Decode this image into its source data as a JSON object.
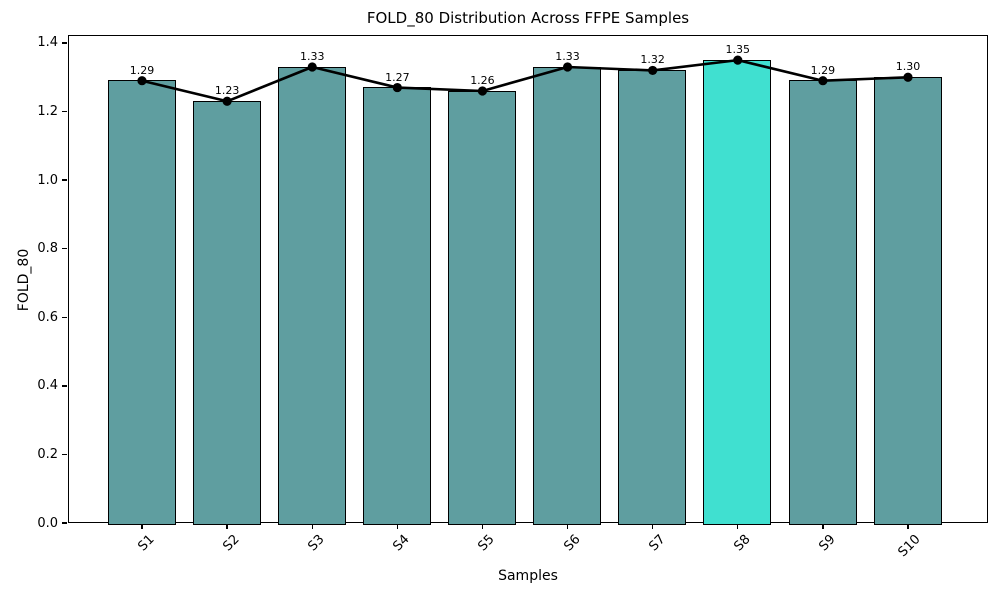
{
  "figure": {
    "title": "FOLD_80 Distribution Across FFPE Samples",
    "xlabel": "Samples",
    "ylabel": "FOLD_80"
  },
  "chart_data": {
    "type": "bar",
    "title": "FOLD_80 Distribution Across FFPE Samples",
    "xlabel": "Samples",
    "ylabel": "FOLD_80",
    "categories": [
      "S1",
      "S2",
      "S3",
      "S4",
      "S5",
      "S6",
      "S7",
      "S8",
      "S9",
      "S10"
    ],
    "series": [
      {
        "name": "FOLD_80 bars",
        "type": "bar",
        "values": [
          1.29,
          1.23,
          1.33,
          1.27,
          1.26,
          1.33,
          1.32,
          1.35,
          1.29,
          1.3
        ]
      },
      {
        "name": "FOLD_80 line",
        "type": "line",
        "values": [
          1.29,
          1.23,
          1.33,
          1.27,
          1.26,
          1.33,
          1.32,
          1.35,
          1.29,
          1.3
        ]
      }
    ],
    "value_labels": [
      "1.29",
      "1.23",
      "1.33",
      "1.27",
      "1.26",
      "1.33",
      "1.32",
      "1.35",
      "1.29",
      "1.30"
    ],
    "highlight_index": 7,
    "highlighted_category": "S8",
    "colors": {
      "bar_fill": "#5f9ea0",
      "bar_highlight_fill": "#40e0d0",
      "bar_edge": "#000000",
      "line": "#000000",
      "marker": "#000000",
      "text": "#000000"
    },
    "ytick_labels": [
      "0.0",
      "0.2",
      "0.4",
      "0.6",
      "0.8",
      "1.0",
      "1.2",
      "1.4"
    ],
    "ytick_values": [
      0.0,
      0.2,
      0.4,
      0.6,
      0.8,
      1.0,
      1.2,
      1.4
    ],
    "ylim": [
      0,
      1.4233
    ],
    "xtick_rotation_deg": 45,
    "grid": false,
    "legend": null
  }
}
